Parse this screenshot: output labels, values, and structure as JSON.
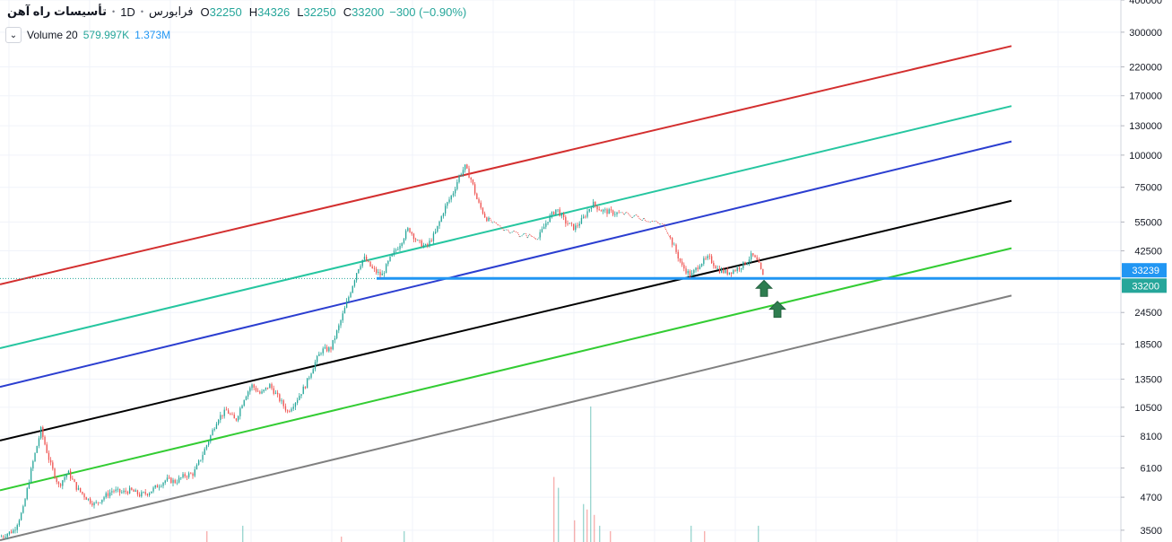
{
  "legend": {
    "symbol": "تأسیسات راه آهن",
    "interval": "1D",
    "exchange": "فرابورس",
    "open_key": "O",
    "open": "32250",
    "high_key": "H",
    "high": "34326",
    "low_key": "L",
    "low": "32250",
    "close_key": "C",
    "close": "33200",
    "change": "−300 (−0.90%)"
  },
  "volume_legend": {
    "label": "Volume 20",
    "value_a": "579.997K",
    "value_b": "1.373M"
  },
  "colors": {
    "up": "#26a69a",
    "down": "#ef5350",
    "red_line": "#d32f2f",
    "teal_line": "#26c6a0",
    "blue_line": "#2b3ed0",
    "black_line": "#000000",
    "green_line": "#33cc33",
    "gray_line": "#808080",
    "horizontal_line": "#2196f3",
    "last_price_tag": "#26a69a",
    "level_tag": "#2196f3",
    "arrow": "#2e7d4f"
  },
  "chart_data": {
    "type": "candlestick",
    "y_scale": "log",
    "ylim": [
      3150,
      400000
    ],
    "y_ticks": [
      3500,
      4700,
      6100,
      8100,
      10500,
      13500,
      18500,
      24500,
      42500,
      55000,
      75000,
      100000,
      130000,
      170000,
      220000,
      300000,
      400000
    ],
    "y_tick_labels": [
      "3500",
      "4700",
      "6100",
      "8100",
      "10500",
      "13500",
      "18500",
      "24500",
      "42500",
      "55000",
      "75000",
      "100000",
      "130000",
      "170000",
      "220000",
      "300000",
      "400000"
    ],
    "price_tags": [
      {
        "label": "33239",
        "value": 33239,
        "kind": "level"
      },
      {
        "label": "33200",
        "value": 33200,
        "kind": "last"
      }
    ],
    "horizontal_level": 33239,
    "price_path": [
      [
        0,
        3300
      ],
      [
        15,
        3500
      ],
      [
        25,
        4200
      ],
      [
        35,
        6200
      ],
      [
        45,
        8600
      ],
      [
        55,
        6400
      ],
      [
        65,
        5200
      ],
      [
        75,
        5900
      ],
      [
        85,
        5100
      ],
      [
        95,
        4700
      ],
      [
        105,
        4400
      ],
      [
        115,
        4700
      ],
      [
        125,
        5000
      ],
      [
        135,
        4900
      ],
      [
        145,
        5000
      ],
      [
        155,
        4800
      ],
      [
        165,
        4900
      ],
      [
        175,
        5200
      ],
      [
        185,
        5500
      ],
      [
        195,
        5400
      ],
      [
        205,
        5700
      ],
      [
        215,
        5800
      ],
      [
        222,
        6500
      ],
      [
        232,
        7800
      ],
      [
        242,
        9500
      ],
      [
        252,
        10200
      ],
      [
        262,
        9300
      ],
      [
        272,
        11500
      ],
      [
        280,
        12800
      ],
      [
        290,
        11800
      ],
      [
        300,
        12800
      ],
      [
        310,
        11400
      ],
      [
        320,
        10100
      ],
      [
        330,
        11200
      ],
      [
        340,
        12800
      ],
      [
        350,
        15500
      ],
      [
        358,
        17500
      ],
      [
        368,
        17700
      ],
      [
        378,
        22000
      ],
      [
        388,
        28000
      ],
      [
        398,
        36000
      ],
      [
        405,
        40000
      ],
      [
        415,
        36000
      ],
      [
        425,
        34000
      ],
      [
        435,
        40000
      ],
      [
        445,
        45000
      ],
      [
        455,
        52000
      ],
      [
        465,
        46000
      ],
      [
        475,
        44000
      ],
      [
        485,
        50000
      ],
      [
        495,
        62000
      ],
      [
        505,
        72000
      ],
      [
        512,
        84000
      ],
      [
        518,
        90000
      ],
      [
        525,
        80000
      ],
      [
        532,
        66000
      ],
      [
        540,
        58000
      ],
      [
        548,
        54000
      ],
      [
        560,
        52000
      ],
      [
        580,
        49000
      ],
      [
        600,
        48000
      ],
      [
        610,
        56000
      ],
      [
        620,
        62000
      ],
      [
        630,
        55000
      ],
      [
        640,
        52000
      ],
      [
        650,
        57000
      ],
      [
        660,
        65000
      ],
      [
        670,
        61000
      ],
      [
        680,
        60000
      ],
      [
        695,
        59000
      ],
      [
        715,
        57000
      ],
      [
        740,
        53000
      ],
      [
        750,
        45000
      ],
      [
        760,
        37000
      ],
      [
        770,
        34000
      ],
      [
        780,
        38000
      ],
      [
        790,
        40000
      ],
      [
        800,
        36000
      ],
      [
        810,
        35000
      ],
      [
        820,
        36000
      ],
      [
        830,
        38000
      ],
      [
        838,
        41000
      ],
      [
        845,
        38000
      ],
      [
        851,
        33200
      ]
    ],
    "volume_bars": [
      [
        230,
        0.02
      ],
      [
        270,
        0.03
      ],
      [
        380,
        0.01
      ],
      [
        450,
        0.02
      ],
      [
        617,
        0.12
      ],
      [
        622,
        0.1
      ],
      [
        640,
        0.04
      ],
      [
        650,
        0.07
      ],
      [
        654,
        0.06
      ],
      [
        658,
        0.25
      ],
      [
        662,
        0.05
      ],
      [
        668,
        0.03
      ],
      [
        680,
        0.02
      ],
      [
        770,
        0.03
      ],
      [
        785,
        0.02
      ],
      [
        845,
        0.03
      ]
    ],
    "channel_lines": [
      {
        "color_key": "red_line",
        "from": [
          0,
          31500
        ],
        "to": [
          1128,
          265000
        ]
      },
      {
        "color_key": "teal_line",
        "from": [
          0,
          17800
        ],
        "to": [
          1128,
          155000
        ]
      },
      {
        "color_key": "blue_line",
        "from": [
          0,
          12600
        ],
        "to": [
          1128,
          113000
        ]
      },
      {
        "color_key": "black_line",
        "from": [
          0,
          7800
        ],
        "to": [
          1128,
          66500
        ]
      },
      {
        "color_key": "green_line",
        "from": [
          0,
          5000
        ],
        "to": [
          1128,
          43500
        ]
      },
      {
        "color_key": "gray_line",
        "from": [
          0,
          3200
        ],
        "to": [
          1128,
          28500
        ]
      }
    ],
    "arrows": [
      {
        "x": 852,
        "value": 30400
      },
      {
        "x": 867,
        "value": 25200
      }
    ]
  }
}
